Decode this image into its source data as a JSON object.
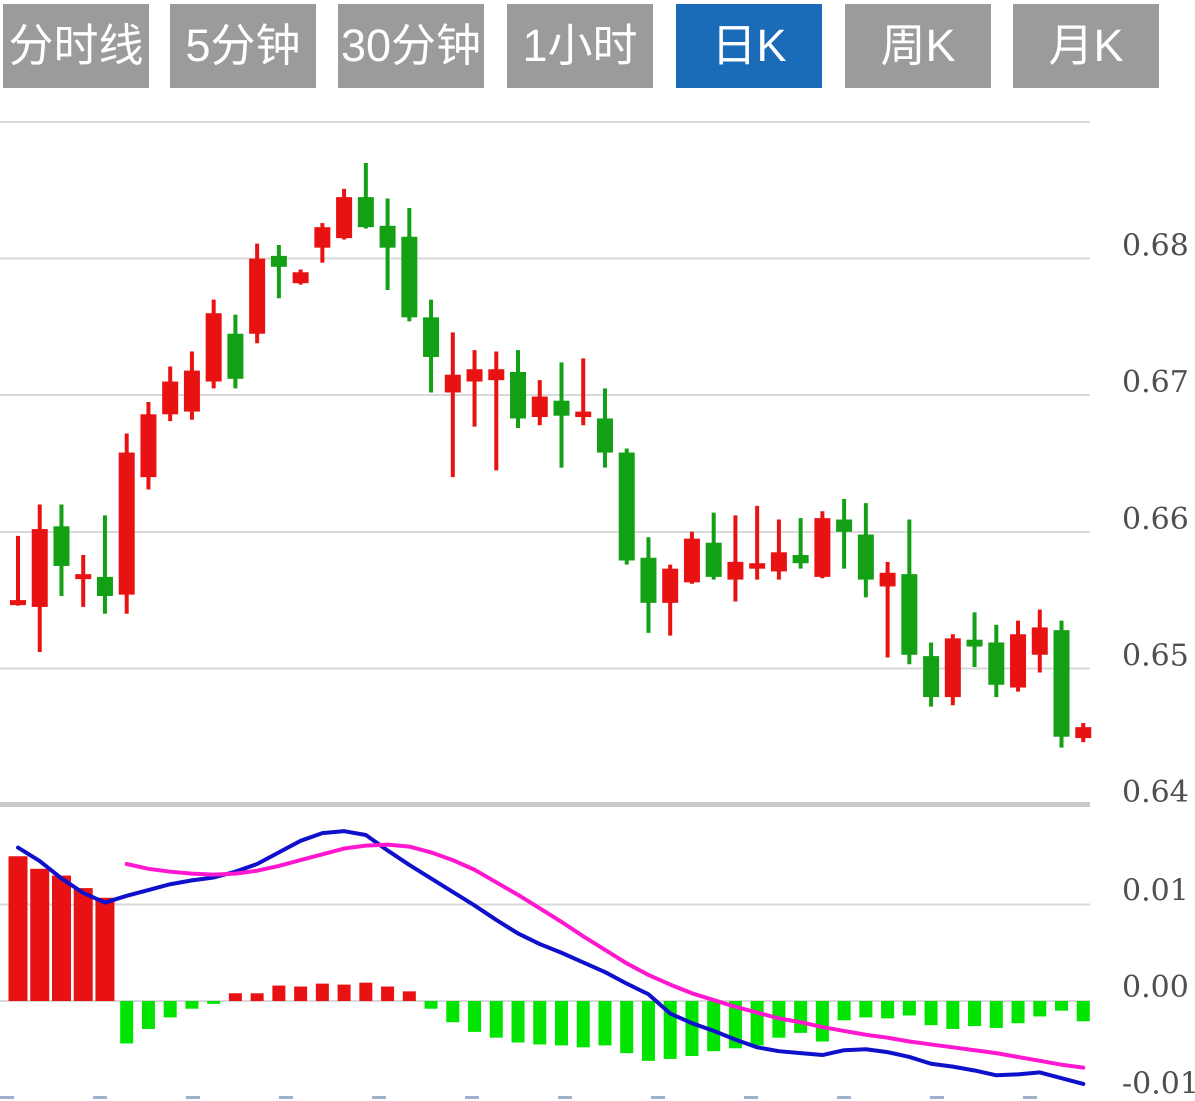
{
  "toolbar": {
    "buttons": [
      {
        "label": "分时线",
        "active": false
      },
      {
        "label": "5分钟",
        "active": false
      },
      {
        "label": "30分钟",
        "active": false
      },
      {
        "label": "1小时",
        "active": false
      },
      {
        "label": "日K",
        "active": true
      },
      {
        "label": "周K",
        "active": false
      },
      {
        "label": "月K",
        "active": false
      }
    ]
  },
  "colors": {
    "button_bg": "#9b9b9b",
    "button_active_bg": "#1b6cb8",
    "button_text": "#ffffff",
    "candle_up": "#e81212",
    "candle_down": "#14a014",
    "hist_up": "#e81212",
    "hist_down": "#00e400",
    "dif_line": "#0f10cc",
    "dea_line": "#ff18cf",
    "gridline": "#d9d9d9",
    "pane_separator": "#c9c9c9",
    "axis_text": "#4f4f4f",
    "x_tick": "#9fb0cc",
    "background": "#ffffff"
  },
  "chart_data": {
    "type": "candlestick_with_macd",
    "title": "",
    "legend_position": "none",
    "grid": true,
    "price_axis": {
      "side": "right",
      "tick_labels": [
        "0.68",
        "0.67",
        "0.66",
        "0.65",
        "0.64"
      ],
      "tick_values": [
        0.68,
        0.67,
        0.66,
        0.65,
        0.64
      ],
      "gridline_values": [
        0.69,
        0.68,
        0.67,
        0.66,
        0.65
      ],
      "range": [
        0.64,
        0.69
      ]
    },
    "macd_axis": {
      "side": "right",
      "tick_labels": [
        "0.01",
        "0.00",
        "-0.01"
      ],
      "tick_values": [
        0.01,
        0.0,
        -0.01
      ],
      "range": [
        -0.01,
        0.01
      ]
    },
    "candles": [
      {
        "o": 0.6548,
        "h": 0.6597,
        "l": 0.6546,
        "c": 0.655
      },
      {
        "o": 0.6545,
        "h": 0.662,
        "l": 0.6512,
        "c": 0.6602
      },
      {
        "o": 0.6604,
        "h": 0.662,
        "l": 0.6553,
        "c": 0.6575
      },
      {
        "o": 0.6566,
        "h": 0.6583,
        "l": 0.6545,
        "c": 0.6569
      },
      {
        "o": 0.6567,
        "h": 0.6612,
        "l": 0.654,
        "c": 0.6553
      },
      {
        "o": 0.6554,
        "h": 0.6672,
        "l": 0.654,
        "c": 0.6658
      },
      {
        "o": 0.664,
        "h": 0.6695,
        "l": 0.6631,
        "c": 0.6686
      },
      {
        "o": 0.6686,
        "h": 0.6721,
        "l": 0.6681,
        "c": 0.671
      },
      {
        "o": 0.6688,
        "h": 0.6732,
        "l": 0.6682,
        "c": 0.6718
      },
      {
        "o": 0.671,
        "h": 0.677,
        "l": 0.6705,
        "c": 0.676
      },
      {
        "o": 0.6745,
        "h": 0.6759,
        "l": 0.6705,
        "c": 0.6712
      },
      {
        "o": 0.6745,
        "h": 0.6811,
        "l": 0.6738,
        "c": 0.68
      },
      {
        "o": 0.6802,
        "h": 0.681,
        "l": 0.6771,
        "c": 0.6794
      },
      {
        "o": 0.6782,
        "h": 0.6792,
        "l": 0.6781,
        "c": 0.679
      },
      {
        "o": 0.6808,
        "h": 0.6826,
        "l": 0.6797,
        "c": 0.6823
      },
      {
        "o": 0.6815,
        "h": 0.6851,
        "l": 0.6814,
        "c": 0.6845
      },
      {
        "o": 0.6845,
        "h": 0.687,
        "l": 0.6822,
        "c": 0.6823
      },
      {
        "o": 0.6824,
        "h": 0.6844,
        "l": 0.6777,
        "c": 0.6808
      },
      {
        "o": 0.6816,
        "h": 0.6837,
        "l": 0.6754,
        "c": 0.6757
      },
      {
        "o": 0.6757,
        "h": 0.677,
        "l": 0.6702,
        "c": 0.6728
      },
      {
        "o": 0.6702,
        "h": 0.6746,
        "l": 0.664,
        "c": 0.6715
      },
      {
        "o": 0.671,
        "h": 0.6733,
        "l": 0.6677,
        "c": 0.6719
      },
      {
        "o": 0.6711,
        "h": 0.6732,
        "l": 0.6645,
        "c": 0.6719
      },
      {
        "o": 0.6717,
        "h": 0.6733,
        "l": 0.6676,
        "c": 0.6683
      },
      {
        "o": 0.6684,
        "h": 0.6711,
        "l": 0.6678,
        "c": 0.6699
      },
      {
        "o": 0.6696,
        "h": 0.6724,
        "l": 0.6647,
        "c": 0.6685
      },
      {
        "o": 0.6684,
        "h": 0.6727,
        "l": 0.6678,
        "c": 0.6688
      },
      {
        "o": 0.6683,
        "h": 0.6705,
        "l": 0.6647,
        "c": 0.6658
      },
      {
        "o": 0.6658,
        "h": 0.6661,
        "l": 0.6576,
        "c": 0.6579
      },
      {
        "o": 0.6581,
        "h": 0.6596,
        "l": 0.6526,
        "c": 0.6548
      },
      {
        "o": 0.6548,
        "h": 0.6576,
        "l": 0.6524,
        "c": 0.6573
      },
      {
        "o": 0.6563,
        "h": 0.66,
        "l": 0.6562,
        "c": 0.6595
      },
      {
        "o": 0.6592,
        "h": 0.6614,
        "l": 0.6565,
        "c": 0.6567
      },
      {
        "o": 0.6565,
        "h": 0.6612,
        "l": 0.6549,
        "c": 0.6578
      },
      {
        "o": 0.6573,
        "h": 0.6619,
        "l": 0.6565,
        "c": 0.6577
      },
      {
        "o": 0.6571,
        "h": 0.6609,
        "l": 0.6565,
        "c": 0.6585
      },
      {
        "o": 0.6583,
        "h": 0.661,
        "l": 0.6573,
        "c": 0.6577
      },
      {
        "o": 0.6567,
        "h": 0.6615,
        "l": 0.6566,
        "c": 0.661
      },
      {
        "o": 0.6609,
        "h": 0.6624,
        "l": 0.6573,
        "c": 0.66
      },
      {
        "o": 0.6598,
        "h": 0.6621,
        "l": 0.6552,
        "c": 0.6565
      },
      {
        "o": 0.656,
        "h": 0.6578,
        "l": 0.6508,
        "c": 0.657
      },
      {
        "o": 0.6569,
        "h": 0.6609,
        "l": 0.6503,
        "c": 0.651
      },
      {
        "o": 0.6509,
        "h": 0.6519,
        "l": 0.6472,
        "c": 0.6479
      },
      {
        "o": 0.6479,
        "h": 0.6525,
        "l": 0.6473,
        "c": 0.6522
      },
      {
        "o": 0.6521,
        "h": 0.6541,
        "l": 0.6501,
        "c": 0.6516
      },
      {
        "o": 0.6519,
        "h": 0.6532,
        "l": 0.6479,
        "c": 0.6488
      },
      {
        "o": 0.6486,
        "h": 0.6535,
        "l": 0.6483,
        "c": 0.6525
      },
      {
        "o": 0.651,
        "h": 0.6543,
        "l": 0.6497,
        "c": 0.653
      },
      {
        "o": 0.6528,
        "h": 0.6535,
        "l": 0.6442,
        "c": 0.645
      },
      {
        "o": 0.6449,
        "h": 0.646,
        "l": 0.6446,
        "c": 0.6457
      }
    ],
    "macd": {
      "histogram": [
        0.015,
        0.0137,
        0.013,
        0.0117,
        0.0107,
        -0.0044,
        -0.0029,
        -0.0017,
        -0.0008,
        -0.0003,
        0.0008,
        0.0008,
        0.0016,
        0.0015,
        0.0018,
        0.0017,
        0.0019,
        0.0015,
        0.001,
        -0.0008,
        -0.0022,
        -0.0032,
        -0.0038,
        -0.0043,
        -0.0045,
        -0.0046,
        -0.0048,
        -0.0046,
        -0.0054,
        -0.0062,
        -0.006,
        -0.0057,
        -0.0052,
        -0.0049,
        -0.0046,
        -0.0038,
        -0.0033,
        -0.0042,
        -0.002,
        -0.0017,
        -0.0018,
        -0.0015,
        -0.0025,
        -0.0029,
        -0.0026,
        -0.0028,
        -0.0023,
        -0.0016,
        -0.001,
        -0.0021
      ],
      "dif": [
        0.0159,
        0.0145,
        0.0127,
        0.0112,
        0.0102,
        0.0109,
        0.0115,
        0.0121,
        0.0125,
        0.0128,
        0.0134,
        0.0142,
        0.0154,
        0.0166,
        0.0174,
        0.0176,
        0.0172,
        0.0156,
        0.0141,
        0.0127,
        0.0113,
        0.0099,
        0.0084,
        0.007,
        0.0059,
        0.005,
        0.004,
        0.003,
        0.0018,
        0.0007,
        -0.0013,
        -0.0023,
        -0.0031,
        -0.004,
        -0.0048,
        -0.0052,
        -0.0054,
        -0.0056,
        -0.0051,
        -0.005,
        -0.0053,
        -0.0058,
        -0.0065,
        -0.0068,
        -0.0072,
        -0.0077,
        -0.0076,
        -0.0074,
        -0.008,
        -0.0086
      ],
      "dea": [
        null,
        null,
        null,
        null,
        null,
        0.0142,
        0.0137,
        0.0134,
        0.0132,
        0.0131,
        0.0132,
        0.0135,
        0.014,
        0.0146,
        0.0152,
        0.0158,
        0.0161,
        0.0162,
        0.016,
        0.0154,
        0.0146,
        0.0136,
        0.0123,
        0.011,
        0.0096,
        0.0082,
        0.0067,
        0.0053,
        0.0039,
        0.0027,
        0.0017,
        0.0008,
        0.0001,
        -0.0006,
        -0.0012,
        -0.0018,
        -0.0022,
        -0.0027,
        -0.0031,
        -0.0035,
        -0.0038,
        -0.0042,
        -0.0045,
        -0.0048,
        -0.0051,
        -0.0054,
        -0.0058,
        -0.0062,
        -0.0066,
        -0.0069
      ]
    }
  }
}
